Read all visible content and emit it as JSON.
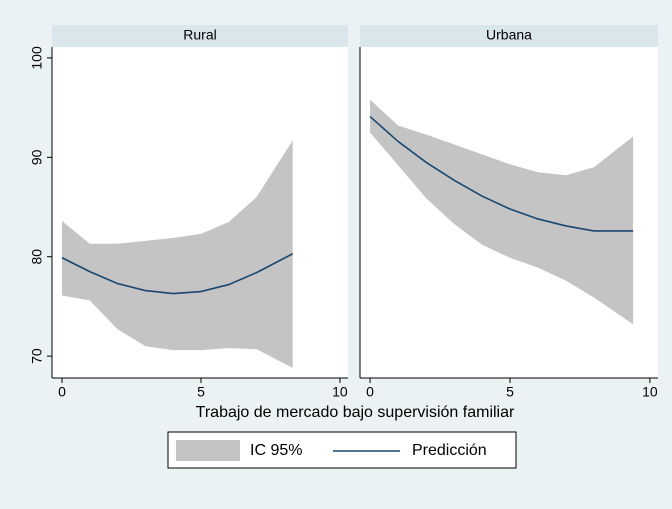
{
  "chart_data": {
    "type": "line",
    "xlabel": "Trabajo de mercado bajo supervisión familiar",
    "xlim": [
      -0.36,
      10.29
    ],
    "xticks": [
      0,
      5,
      10
    ],
    "ylim": [
      67.8,
      101.1
    ],
    "yticks": [
      70,
      80,
      90,
      100
    ],
    "legend": [
      {
        "name": "IC 95%",
        "color": "#c4c4c4"
      },
      {
        "name": "Predicción",
        "color": "#1a476f"
      }
    ],
    "panels": [
      {
        "title": "Rural",
        "x": [
          0,
          1,
          2,
          3,
          4,
          5,
          6,
          7,
          8.3
        ],
        "prediction": [
          79.9,
          78.5,
          77.3,
          76.6,
          76.3,
          76.5,
          77.2,
          78.4,
          80.3
        ],
        "ci_upper": [
          83.6,
          81.3,
          81.3,
          81.6,
          81.9,
          82.3,
          83.5,
          86,
          91.7
        ],
        "ci_lower": [
          76.1,
          75.6,
          72.7,
          71,
          70.6,
          70.6,
          70.8,
          70.7,
          68.8
        ]
      },
      {
        "title": "Urbana",
        "x": [
          0,
          1,
          2,
          3,
          4,
          5,
          6,
          7,
          8,
          9.4
        ],
        "prediction": [
          94.1,
          91.6,
          89.5,
          87.7,
          86.1,
          84.8,
          83.8,
          83.1,
          82.6,
          82.6
        ],
        "ci_upper": [
          95.8,
          93.2,
          92.3,
          91.3,
          90.3,
          89.3,
          88.5,
          88.2,
          89,
          92.1
        ],
        "ci_lower": [
          92.5,
          89.2,
          85.9,
          83.3,
          81.2,
          79.9,
          78.9,
          77.6,
          75.9,
          73.2
        ]
      }
    ]
  }
}
